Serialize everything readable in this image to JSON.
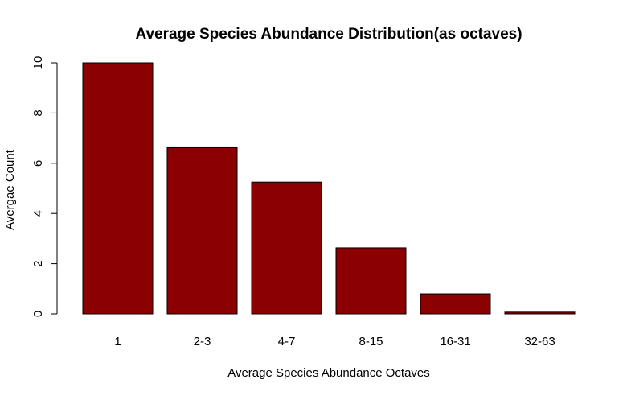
{
  "chart_data": {
    "type": "bar",
    "title": "Average Species Abundance Distribution(as octaves)",
    "xlabel": "Average Species Abundance Octaves",
    "ylabel": "Avergae Count",
    "categories": [
      "1",
      "2-3",
      "4-7",
      "8-15",
      "16-31",
      "32-63"
    ],
    "values": [
      10.0,
      6.62,
      5.25,
      2.63,
      0.8,
      0.07
    ],
    "ylim": [
      0,
      10
    ],
    "yticks": [
      "0",
      "2",
      "4",
      "6",
      "8",
      "10"
    ],
    "grid": false,
    "legend": "none",
    "bar_color": "#8b0000"
  }
}
